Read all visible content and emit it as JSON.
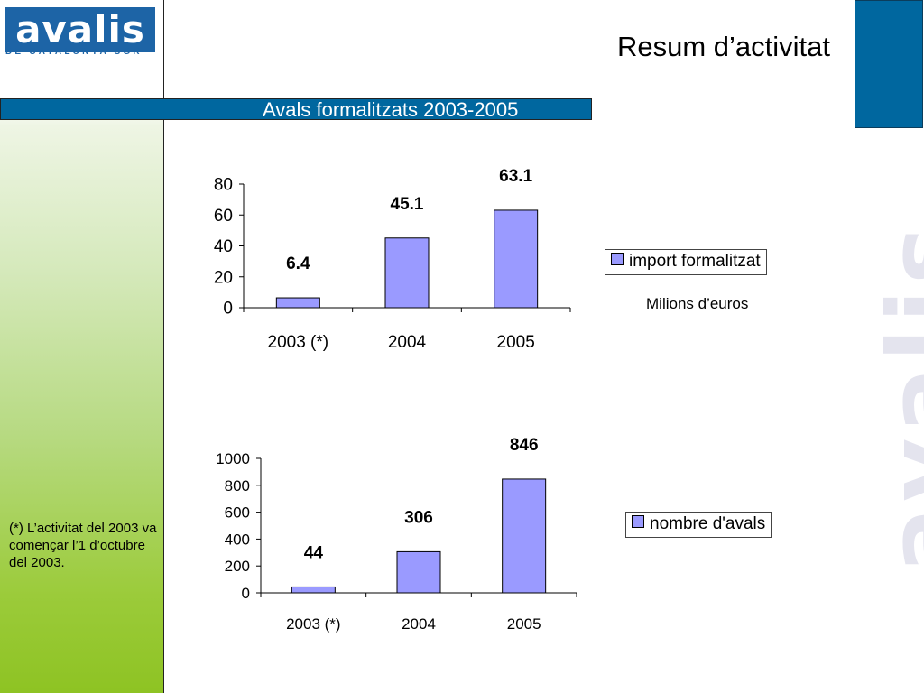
{
  "logo": {
    "word": "avalis",
    "subtitle": "DE CATALUNYA SGR"
  },
  "header": {
    "title": "Resum d’activitat"
  },
  "section": {
    "title": "Avals formalitzats 2003-2005"
  },
  "watermark": "avalis",
  "footnote": "(*) L’activitat del 2003 va començar l’1 d’octubre del 2003.",
  "unit_note": "Milions d’euros",
  "colors": {
    "bar_fill": "#9a9aff",
    "accent": "#00679f",
    "sidebar_green": "#8ec323"
  },
  "chart_data": [
    {
      "type": "bar",
      "categories": [
        "2003 (*)",
        "2004",
        "2005"
      ],
      "series": [
        {
          "name": "import formalitzat",
          "values": [
            6.4,
            45.1,
            63.1
          ]
        }
      ],
      "data_labels": [
        "6.4",
        "45.1",
        "63.1"
      ],
      "yticks": [
        "0",
        "20",
        "40",
        "60",
        "80"
      ],
      "ylim": [
        0,
        80
      ],
      "grid": false,
      "legend": "right"
    },
    {
      "type": "bar",
      "categories": [
        "2003 (*)",
        "2004",
        "2005"
      ],
      "series": [
        {
          "name": "nombre d'avals",
          "values": [
            44,
            306,
            846
          ]
        }
      ],
      "data_labels": [
        "44",
        "306",
        "846"
      ],
      "yticks": [
        "0",
        "200",
        "400",
        "600",
        "800",
        "1000"
      ],
      "ylim": [
        0,
        1000
      ],
      "grid": false,
      "legend": "right"
    }
  ]
}
